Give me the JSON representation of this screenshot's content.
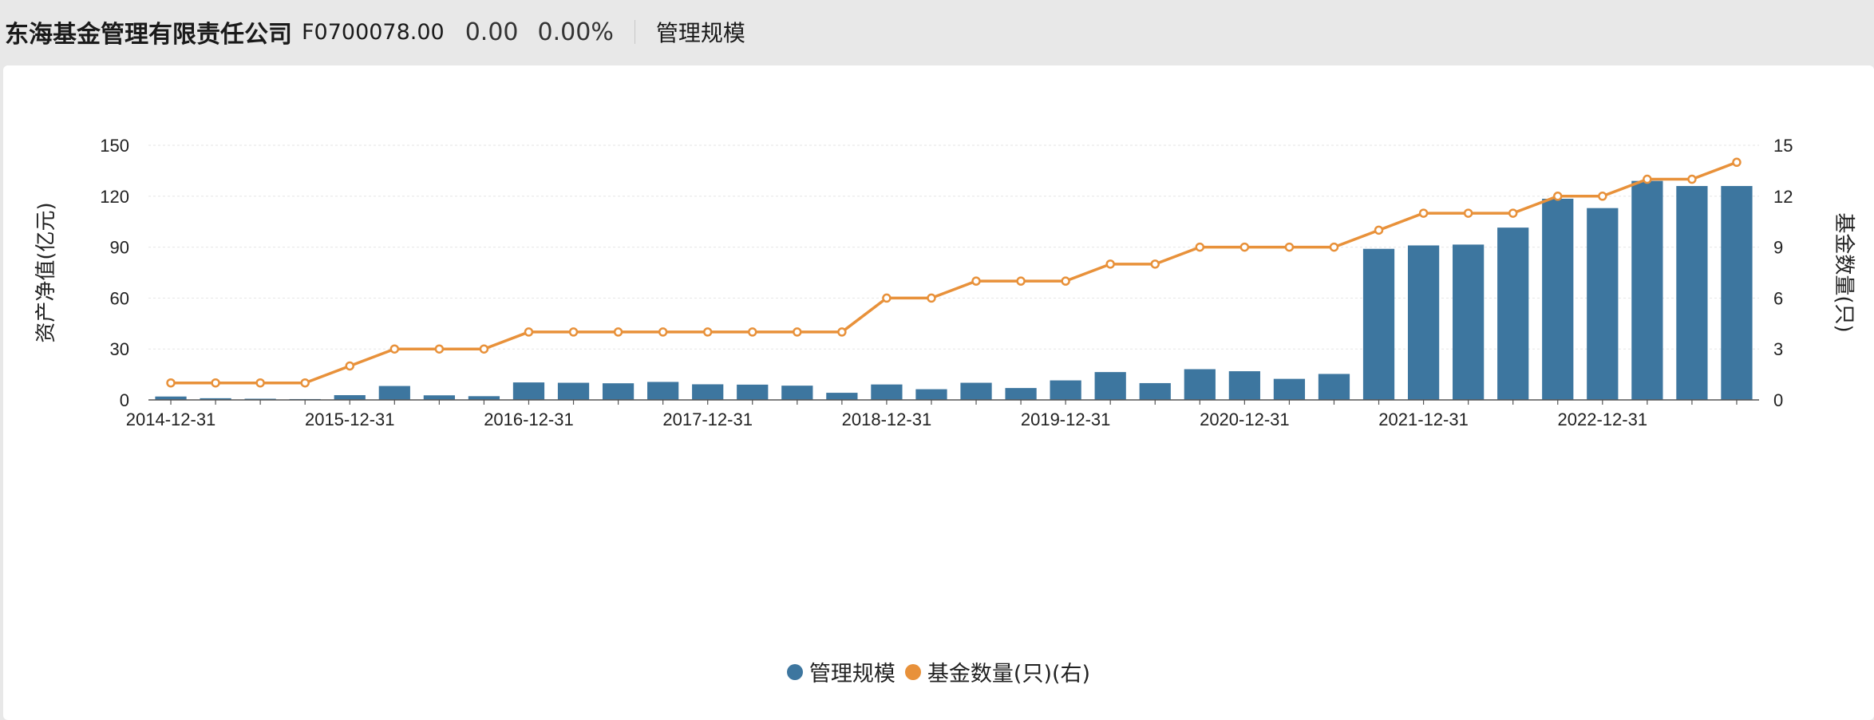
{
  "header": {
    "company_name": "东海基金管理有限责任公司",
    "fund_code": "F0700078.00",
    "change_value": "0.00",
    "change_pct": "0.00%",
    "tab_label": "管理规模"
  },
  "colors": {
    "bar": "#3d769f",
    "line": "#e8913a",
    "grid": "#e6e6e6",
    "axis": "#555555"
  },
  "chart_data": {
    "type": "bar",
    "categories": [
      "2014-12-31",
      "2015-03-31",
      "2015-06-30",
      "2015-09-30",
      "2015-12-31",
      "2016-03-31",
      "2016-06-30",
      "2016-09-30",
      "2016-12-31",
      "2017-03-31",
      "2017-06-30",
      "2017-09-30",
      "2017-12-31",
      "2018-03-31",
      "2018-06-30",
      "2018-09-30",
      "2018-12-31",
      "2019-03-31",
      "2019-06-30",
      "2019-09-30",
      "2019-12-31",
      "2020-03-31",
      "2020-06-30",
      "2020-09-30",
      "2020-12-31",
      "2021-03-31",
      "2021-06-30",
      "2021-09-30",
      "2021-12-31",
      "2022-03-31",
      "2022-06-30",
      "2022-09-30",
      "2022-12-31",
      "2023-03-31",
      "2023-06-30",
      "2023-09-30"
    ],
    "xtick_labels": [
      "2014-12-31",
      "2015-12-31",
      "2016-12-31",
      "2017-12-31",
      "2018-12-31",
      "2019-12-31",
      "2020-12-31",
      "2021-12-31",
      "2022-12-31"
    ],
    "series": [
      {
        "name": "管理规模",
        "type": "bar",
        "axis": "left",
        "values": [
          2.0,
          1.0,
          0.7,
          0.5,
          2.8,
          8.2,
          2.7,
          2.2,
          10.3,
          10.1,
          9.8,
          10.6,
          9.2,
          9.0,
          8.4,
          4.2,
          9.1,
          6.3,
          10.1,
          7.0,
          11.5,
          16.4,
          9.9,
          18.1,
          16.9,
          12.4,
          15.3,
          89.0,
          91.0,
          91.5,
          101.5,
          118.5,
          113.0,
          129.0,
          126.0,
          126.0
        ]
      },
      {
        "name": "基金数量(只)(右)",
        "type": "line",
        "axis": "right",
        "values": [
          1,
          1,
          1,
          1,
          2,
          3,
          3,
          3,
          4,
          4,
          4,
          4,
          4,
          4,
          4,
          4,
          6,
          6,
          7,
          7,
          7,
          8,
          8,
          9,
          9,
          9,
          9,
          10,
          11,
          11,
          11,
          12,
          12,
          13,
          13,
          14
        ]
      }
    ],
    "ylabel_left": "资产净值(亿元)",
    "ylabel_right": "基金数量(只)",
    "ylim_left": [
      0,
      150
    ],
    "ylim_right": [
      0,
      15
    ],
    "yticks_left": [
      "0",
      "30",
      "60",
      "90",
      "120",
      "150"
    ],
    "yticks_right": [
      "0",
      "3",
      "6",
      "9",
      "12",
      "15"
    ],
    "legend": [
      "管理规模",
      "基金数量(只)(右)"
    ],
    "legend_position": "bottom-center",
    "grid": true
  }
}
